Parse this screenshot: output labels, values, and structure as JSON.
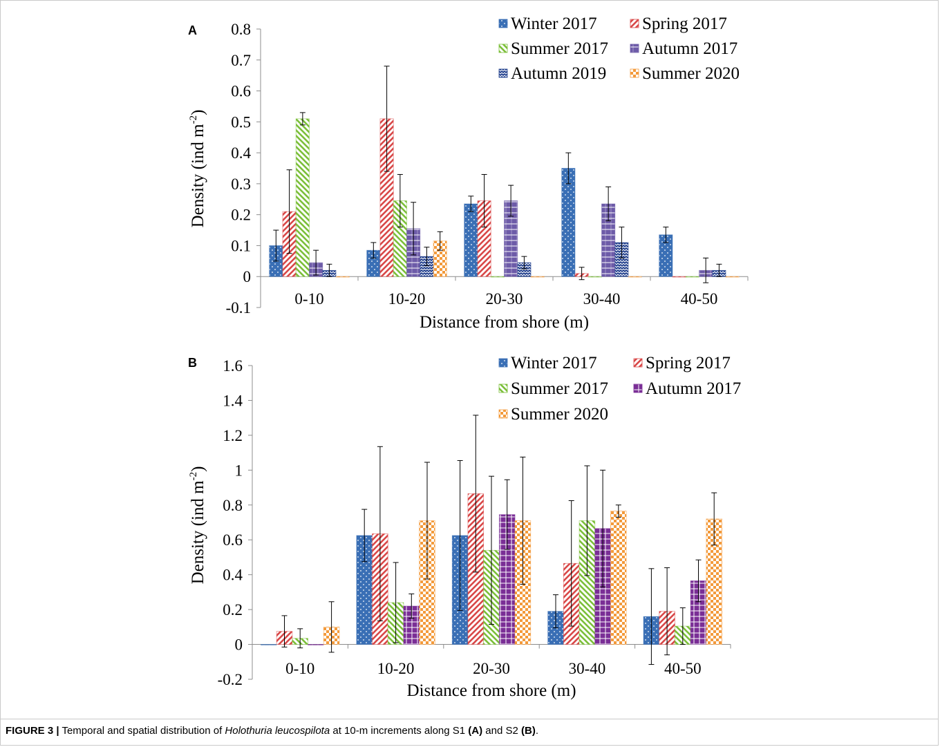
{
  "chart_data": [
    {
      "panel": "A",
      "type": "bar",
      "xlabel": "Distance from shore (m)",
      "ylabel_main": "Density (ind m",
      "ylabel_sup": "-2",
      "ylabel_tail": ")",
      "ylim": [
        -0.1,
        0.8
      ],
      "yticks": [
        -0.1,
        0,
        0.1,
        0.2,
        0.3,
        0.4,
        0.5,
        0.6,
        0.7,
        0.8
      ],
      "ytick_labels": [
        "-0.1",
        "0",
        "0.1",
        "0.2",
        "0.3",
        "0.4",
        "0.5",
        "0.6",
        "0.7",
        "0.8"
      ],
      "categories": [
        "0-10",
        "10-20",
        "20-30",
        "30-40",
        "40-50"
      ],
      "legend_position": "top-right",
      "series": [
        {
          "name": "Winter 2017",
          "color": "#3a6fb5",
          "pattern": "dots",
          "values": [
            0.1,
            0.085,
            0.235,
            0.35,
            0.135
          ],
          "err": [
            0.05,
            0.025,
            0.025,
            0.05,
            0.025
          ]
        },
        {
          "name": "Spring 2017",
          "color": "#d94848",
          "pattern": "diag-right",
          "values": [
            0.21,
            0.51,
            0.245,
            0.01,
            0
          ],
          "err": [
            0.135,
            0.17,
            0.085,
            0.02,
            0
          ]
        },
        {
          "name": "Summer 2017",
          "color": "#7cbf3a",
          "pattern": "diag-left",
          "values": [
            0.51,
            0.245,
            0,
            0,
            0
          ],
          "err": [
            0.02,
            0.085,
            0,
            0,
            0
          ]
        },
        {
          "name": "Autumn 2017",
          "color": "#6d5ba8",
          "pattern": "horizontal",
          "values": [
            0.045,
            0.155,
            0.245,
            0.235,
            0.02
          ],
          "err": [
            0.04,
            0.085,
            0.05,
            0.055,
            0.04
          ]
        },
        {
          "name": "Autumn 2019",
          "color": "#1f3e8c",
          "pattern": "zigzag",
          "values": [
            0.02,
            0.065,
            0.045,
            0.11,
            0.02
          ],
          "err": [
            0.02,
            0.03,
            0.02,
            0.05,
            0.02
          ]
        },
        {
          "name": "Summer 2020",
          "color": "#f39a3b",
          "pattern": "checker",
          "values": [
            0,
            0.115,
            0,
            0,
            0
          ],
          "err": [
            0,
            0.03,
            0,
            0,
            0
          ]
        }
      ]
    },
    {
      "panel": "B",
      "type": "bar",
      "xlabel": "Distance from shore (m)",
      "ylabel_main": "Density (ind m",
      "ylabel_sup": "-2",
      "ylabel_tail": ")",
      "ylim": [
        -0.2,
        1.6
      ],
      "yticks": [
        -0.2,
        0,
        0.2,
        0.4,
        0.6,
        0.8,
        1.0,
        1.2,
        1.4,
        1.6
      ],
      "ytick_labels": [
        "-0.2",
        "0",
        "0.2",
        "0.4",
        "0.6",
        "0.8",
        "1",
        "1.2",
        "1.4",
        "1.6"
      ],
      "categories": [
        "0-10",
        "10-20",
        "20-30",
        "30-40",
        "40-50"
      ],
      "legend_position": "top-right",
      "series": [
        {
          "name": "Winter 2017",
          "color": "#3a6fb5",
          "pattern": "dots",
          "values": [
            0,
            0.625,
            0.625,
            0.19,
            0.16
          ],
          "err": [
            0,
            0.15,
            0.43,
            0.095,
            0.275
          ]
        },
        {
          "name": "Spring 2017",
          "color": "#d94848",
          "pattern": "diag-right",
          "values": [
            0.075,
            0.635,
            0.865,
            0.465,
            0.19
          ],
          "err": [
            0.09,
            0.5,
            0.45,
            0.36,
            0.25
          ]
        },
        {
          "name": "Summer 2017",
          "color": "#7cbf3a",
          "pattern": "diag-left",
          "values": [
            0.035,
            0.24,
            0.54,
            0.71,
            0.105
          ],
          "err": [
            0.055,
            0.23,
            0.425,
            0.315,
            0.105
          ]
        },
        {
          "name": "Autumn 2017",
          "color": "#7a2e96",
          "pattern": "grid",
          "values": [
            0,
            0.22,
            0.745,
            0.665,
            0.365
          ],
          "err": [
            0,
            0.07,
            0.2,
            0.335,
            0.12
          ]
        },
        {
          "name": "Summer 2020",
          "color": "#f39a3b",
          "pattern": "checker",
          "values": [
            0.1,
            0.71,
            0.71,
            0.765,
            0.72
          ],
          "err": [
            0.145,
            0.335,
            0.365,
            0.035,
            0.15
          ]
        }
      ]
    }
  ],
  "caption": {
    "label": "FIGURE 3 |",
    "text_1": " Temporal and spatial distribution of ",
    "species": "Holothuria leucospilota",
    "text_2": " at 10-m increments along S1 ",
    "ref_a": "(A)",
    "text_3": " and S2 ",
    "ref_b": "(B)",
    "text_4": "."
  }
}
